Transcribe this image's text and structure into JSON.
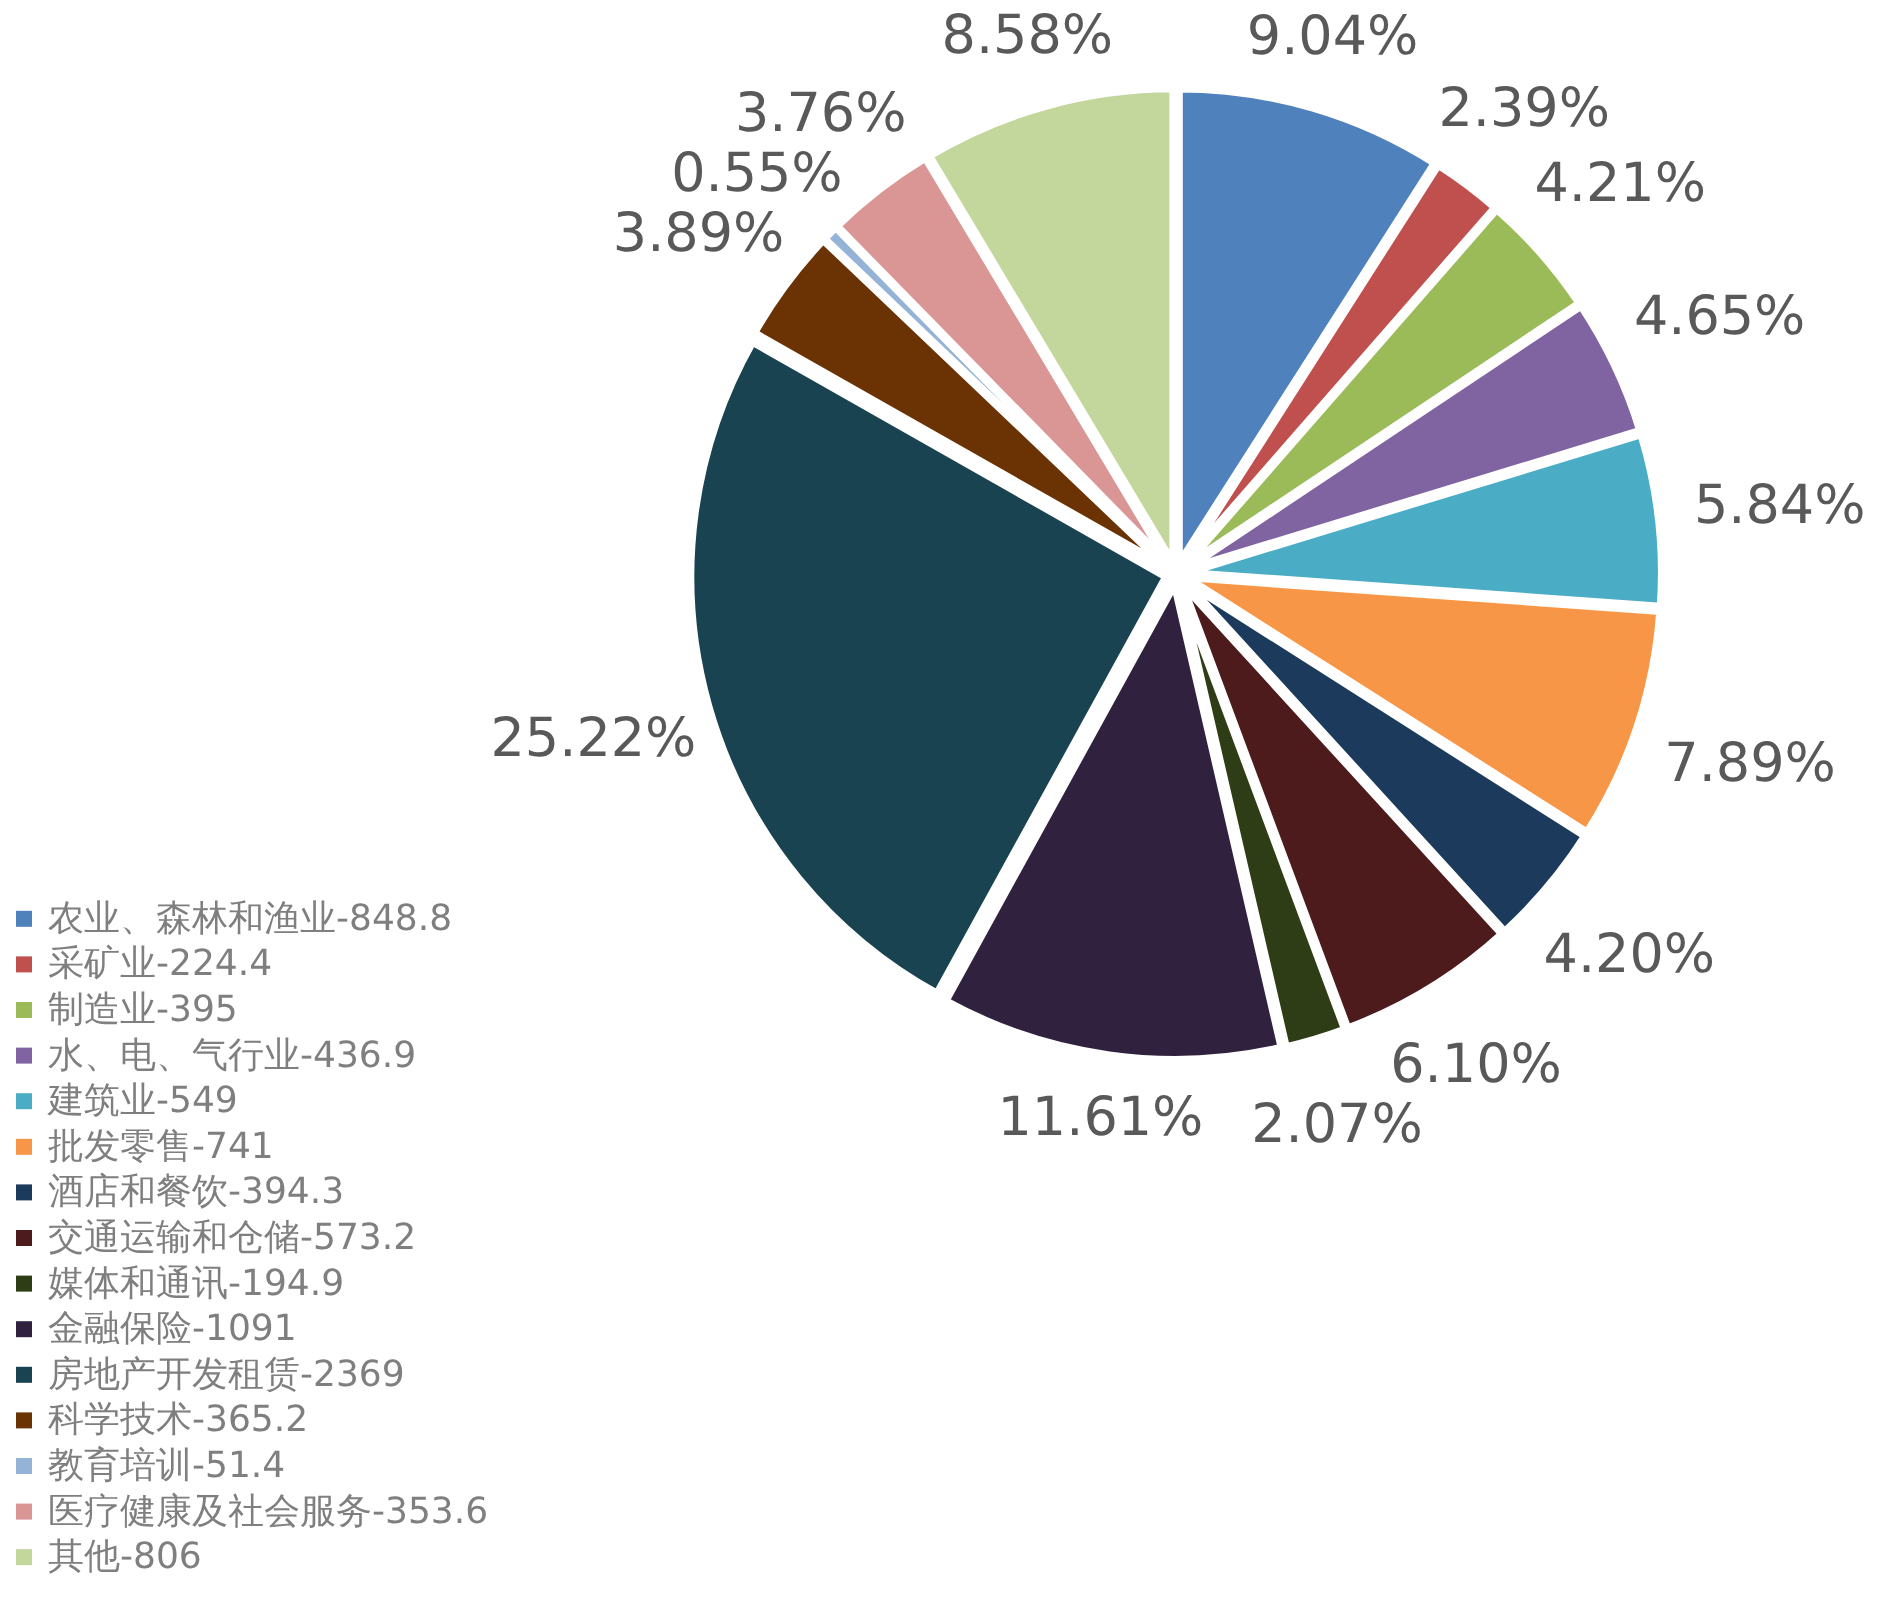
{
  "chart_data": {
    "type": "pie",
    "categories": [
      "农业、森林和渔业-848.8",
      "采矿业-224.4",
      "制造业-395",
      "水、电、气行业-436.9",
      "建筑业-549",
      "批发零售-741",
      "酒店和餐饮-394.3",
      "交通运输和仓储-573.2",
      "媒体和通讯-194.9",
      "金融保险-1091",
      "房地产开发租赁-2369",
      "科学技术-365.2",
      "教育培训-51.4",
      "医疗健康及社会服务-353.6",
      "其他-806"
    ],
    "values": [
      9.04,
      2.39,
      4.21,
      4.65,
      5.84,
      7.89,
      4.2,
      6.1,
      2.07,
      11.61,
      25.22,
      3.89,
      0.55,
      3.76,
      8.58
    ],
    "value_labels": [
      "9.04%",
      "2.39%",
      "4.21%",
      "4.65%",
      "5.84%",
      "7.89%",
      "4.20%",
      "6.10%",
      "2.07%",
      "11.61%",
      "25.22%",
      "3.89%",
      "0.55%",
      "3.76%",
      "8.58%"
    ],
    "colors": [
      "#4f81bd",
      "#c0504d",
      "#9bbb59",
      "#8064a2",
      "#4bacc6",
      "#f79646",
      "#1c3a5c",
      "#4d1b1b",
      "#2f3d17",
      "#30223f",
      "#194350",
      "#6b3303",
      "#95b3d7",
      "#d99694",
      "#c3d69b"
    ],
    "legend": "bottom left"
  }
}
